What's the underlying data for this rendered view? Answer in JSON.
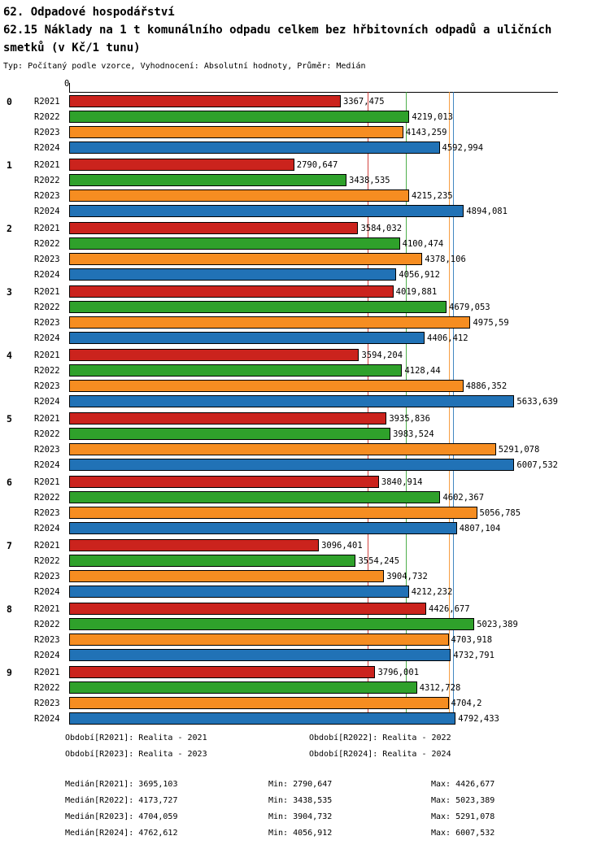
{
  "header": {
    "title_line1": "62. Odpadové hospodářství",
    "title_line2": "62.15 Náklady na 1 t komunálního odpadu celkem bez hřbitovních odpadů a uličních smetků (v Kč/1 tunu)",
    "subtitle": "Typ: Počítaný podle vzorce, Vyhodnocení: Absolutní hodnoty, Průměr: Medián"
  },
  "chart_data": {
    "type": "bar",
    "orientation": "horizontal",
    "title": "62.15 Náklady na 1 t komunálního odpadu celkem bez hřbitovních odpadů a uličních smetků (v Kč/1 tunu)",
    "xlabel": "",
    "ylabel": "",
    "axis_zero_label": "0",
    "xlim": [
      0,
      6060
    ],
    "grid": "median-lines-per-series",
    "legend_position": "bottom",
    "categories": [
      "0",
      "1",
      "2",
      "3",
      "4",
      "5",
      "6",
      "7",
      "8",
      "9"
    ],
    "series": [
      {
        "name": "R2021",
        "legend": "Období[R2021]: Realita - 2021",
        "color": "#cb231d",
        "median": 3695.103,
        "values": [
          3367.475,
          2790.647,
          3584.032,
          4019.881,
          3594.204,
          3935.836,
          3840.914,
          3096.401,
          4426.677,
          3796.001
        ],
        "labels": [
          "3367,475",
          "2790,647",
          "3584,032",
          "4019,881",
          "3594,204",
          "3935,836",
          "3840,914",
          "3096,401",
          "4426,677",
          "3796,001"
        ]
      },
      {
        "name": "R2022",
        "legend": "Období[R2022]: Realita - 2022",
        "color": "#2fa12b",
        "median": 4173.727,
        "values": [
          4219.013,
          3438.535,
          4100.474,
          4679.053,
          4128.44,
          3983.524,
          4602.367,
          3554.245,
          5023.389,
          4312.728
        ],
        "labels": [
          "4219,013",
          "3438,535",
          "4100,474",
          "4679,053",
          "4128,44",
          "3983,524",
          "4602,367",
          "3554,245",
          "5023,389",
          "4312,728"
        ]
      },
      {
        "name": "R2023",
        "legend": "Období[R2023]: Realita - 2023",
        "color": "#f68d21",
        "median": 4704.059,
        "values": [
          4143.259,
          4215.235,
          4378.106,
          4975.59,
          4886.352,
          5291.078,
          5056.785,
          3904.732,
          4703.918,
          4704.2
        ],
        "labels": [
          "4143,259",
          "4215,235",
          "4378,106",
          "4975,59",
          "4886,352",
          "5291,078",
          "5056,785",
          "3904,732",
          "4703,918",
          "4704,2"
        ]
      },
      {
        "name": "R2024",
        "legend": "Období[R2024]: Realita - 2024",
        "color": "#2172b6",
        "median": 4762.612,
        "values": [
          4592.994,
          4894.081,
          4056.912,
          4406.412,
          5633.639,
          6007.532,
          4807.104,
          4212.232,
          4732.791,
          4792.433
        ],
        "labels": [
          "4592,994",
          "4894,081",
          "4056,912",
          "4406,412",
          "5633,639",
          "6007,532",
          "4807,104",
          "4212,232",
          "4732,791",
          "4792,433"
        ]
      }
    ]
  },
  "footer": {
    "legend": [
      "Období[R2021]: Realita - 2021",
      "Období[R2022]: Realita - 2022",
      "Období[R2023]: Realita - 2023",
      "Období[R2024]: Realita - 2024"
    ],
    "stats": [
      [
        "Medián[R2021]: 3695,103",
        "Min: 2790,647",
        "Max: 4426,677"
      ],
      [
        "Medián[R2022]: 4173,727",
        "Min: 3438,535",
        "Max: 5023,389"
      ],
      [
        "Medián[R2023]: 4704,059",
        "Min: 3904,732",
        "Max: 5291,078"
      ],
      [
        "Medián[R2024]: 4762,612",
        "Min: 4056,912",
        "Max: 6007,532"
      ]
    ]
  }
}
